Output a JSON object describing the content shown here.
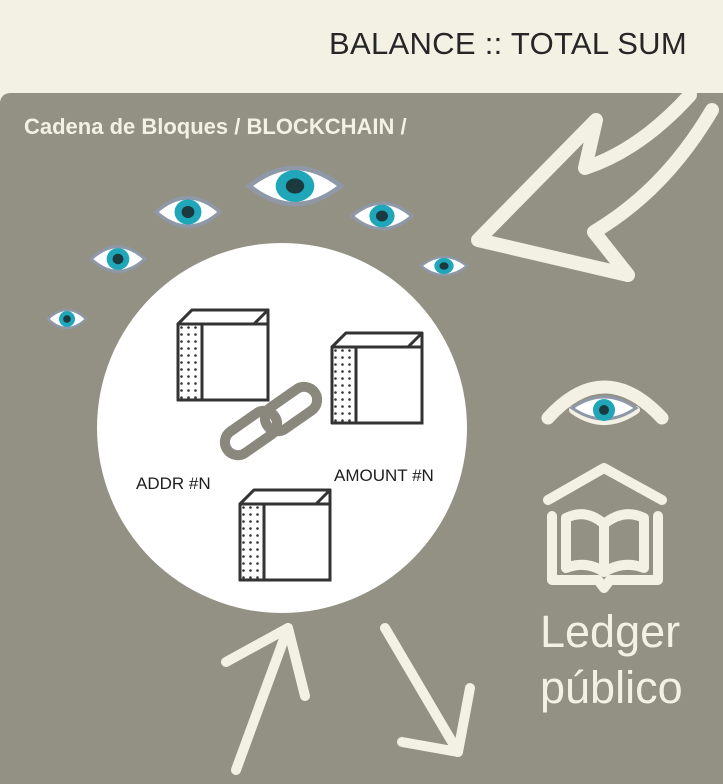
{
  "header": {
    "title": "BALANCE :: TOTAL SUM"
  },
  "breadcrumb": {
    "text": "Cadena de Bloques / BLOCKCHAIN /"
  },
  "diagram": {
    "label_addr": "ADDR #N",
    "label_amount": "AMOUNT #N",
    "ledger_line1": "Ledger",
    "ledger_line2": "público"
  },
  "colors": {
    "background": "#939084",
    "cream": "#f3f0e4",
    "eye_iris": "#1fa6b8",
    "eye_outline": "#8e98a6",
    "chain": "#8a887c"
  },
  "icons": [
    "eye-icon",
    "cube-block-icon",
    "chain-link-icon",
    "open-book-icon",
    "arrow-icon"
  ]
}
